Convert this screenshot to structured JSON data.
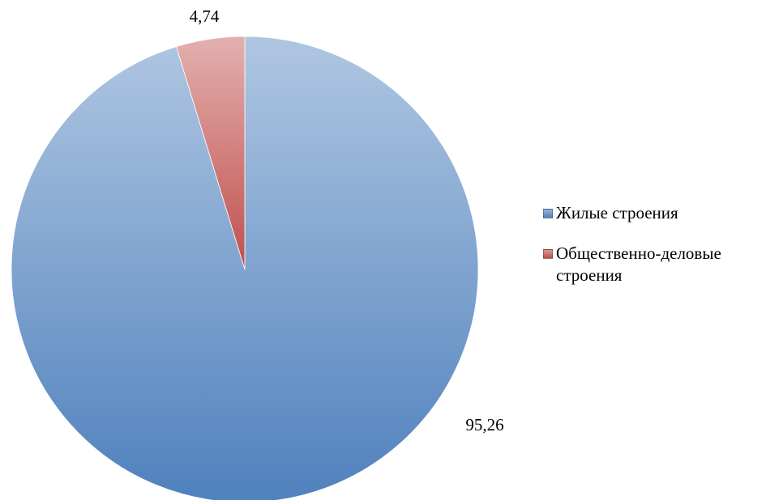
{
  "chart_data": {
    "type": "pie",
    "categories": [
      "Жилые строения",
      "Общественно-деловые строения"
    ],
    "values": [
      95.26,
      4.74
    ],
    "value_labels": [
      "95,26",
      "4,74"
    ],
    "colors": [
      "#4f81bd",
      "#c0504d"
    ],
    "legend": "right"
  }
}
